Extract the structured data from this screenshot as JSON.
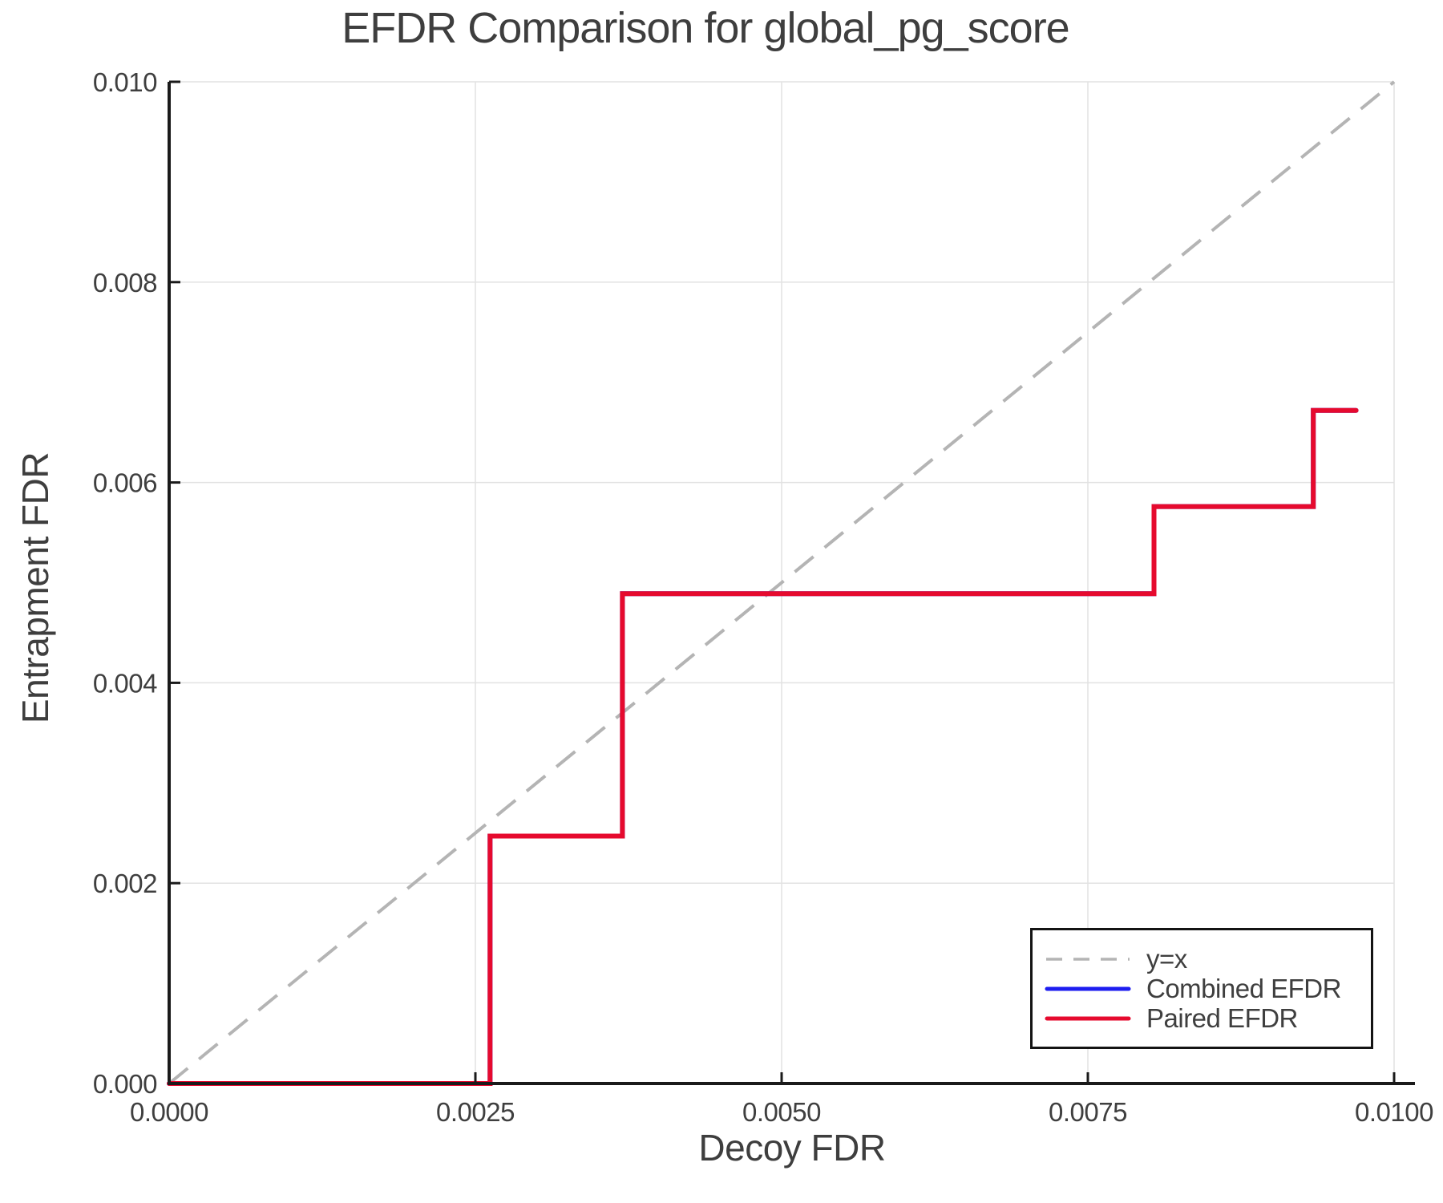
{
  "chart_data": {
    "type": "line",
    "title": "EFDR Comparison for global_pg_score",
    "xlabel": "Decoy FDR",
    "ylabel": "Entrapment FDR",
    "xlim": [
      0.0,
      0.01
    ],
    "ylim": [
      0.0,
      0.01
    ],
    "grid": true,
    "legend_position": "lower right",
    "x_ticks": {
      "values": [
        0.0,
        0.0025,
        0.005,
        0.0075,
        0.01
      ],
      "labels": [
        "0.0000",
        "0.0025",
        "0.0050",
        "0.0075",
        "0.0100"
      ]
    },
    "y_ticks": {
      "values": [
        0.0,
        0.002,
        0.004,
        0.006,
        0.008,
        0.01
      ],
      "labels": [
        "0.000",
        "0.002",
        "0.004",
        "0.006",
        "0.008",
        "0.010"
      ]
    },
    "reference_line": {
      "label": "y=x",
      "style": "dashed",
      "color": "#b4b4b4",
      "points": [
        [
          0.0,
          0.0
        ],
        [
          0.01,
          0.01
        ]
      ]
    },
    "series": [
      {
        "name": "Combined EFDR",
        "color": "#1d1df0",
        "style": "solid",
        "step_points": [
          [
            0.0,
            0.0
          ],
          [
            0.00262,
            0.0
          ],
          [
            0.00262,
            0.00247
          ],
          [
            0.0037,
            0.00247
          ],
          [
            0.0037,
            0.00489
          ],
          [
            0.00804,
            0.00489
          ],
          [
            0.00804,
            0.00576
          ],
          [
            0.00934,
            0.00576
          ],
          [
            0.00934,
            0.00672
          ],
          [
            0.00969,
            0.00672
          ]
        ]
      },
      {
        "name": "Paired EFDR",
        "color": "#e60a2e",
        "style": "solid",
        "step_points": [
          [
            0.0,
            0.0
          ],
          [
            0.00262,
            0.0
          ],
          [
            0.00262,
            0.00247
          ],
          [
            0.0037,
            0.00247
          ],
          [
            0.0037,
            0.00489
          ],
          [
            0.00804,
            0.00489
          ],
          [
            0.00804,
            0.00576
          ],
          [
            0.00934,
            0.00576
          ],
          [
            0.00934,
            0.00672
          ],
          [
            0.00969,
            0.00672
          ]
        ]
      }
    ],
    "colors": {
      "grid": "#e2e2e2",
      "spine": "#1a1a1a",
      "text": "#3f3f3f"
    }
  }
}
